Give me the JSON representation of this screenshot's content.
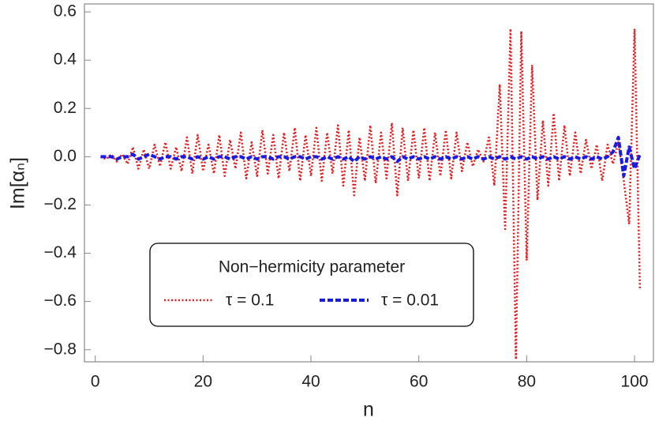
{
  "chart_data": {
    "type": "line",
    "xlabel": "n",
    "ylabel": "Im[αₙ]",
    "legend_title": "Non−hermicity parameter",
    "legend": "bottom-left",
    "x": [
      1,
      2,
      3,
      4,
      5,
      6,
      7,
      8,
      9,
      10,
      11,
      12,
      13,
      14,
      15,
      16,
      17,
      18,
      19,
      20,
      21,
      22,
      23,
      24,
      25,
      26,
      27,
      28,
      29,
      30,
      31,
      32,
      33,
      34,
      35,
      36,
      37,
      38,
      39,
      40,
      41,
      42,
      43,
      44,
      45,
      46,
      47,
      48,
      49,
      50,
      51,
      52,
      53,
      54,
      55,
      56,
      57,
      58,
      59,
      60,
      61,
      62,
      63,
      64,
      65,
      66,
      67,
      68,
      69,
      70,
      71,
      72,
      73,
      74,
      75,
      76,
      77,
      78,
      79,
      80,
      81,
      82,
      83,
      84,
      85,
      86,
      87,
      88,
      89,
      90,
      91,
      92,
      93,
      94,
      95,
      96,
      97,
      98,
      99,
      100,
      101
    ],
    "series": [
      {
        "name": "τ = 0.1",
        "color": "#e8191e",
        "style": "dotted",
        "values": [
          0,
          -0.01,
          0.01,
          -0.02,
          0.01,
          -0.03,
          0.04,
          -0.05,
          0.03,
          -0.05,
          0.05,
          -0.04,
          0.06,
          -0.05,
          0.04,
          -0.06,
          0.08,
          -0.07,
          0.09,
          -0.06,
          0.05,
          -0.07,
          0.09,
          -0.08,
          0.07,
          -0.05,
          0.1,
          -0.09,
          0.06,
          -0.08,
          0.11,
          -0.07,
          0.09,
          -0.09,
          0.1,
          -0.06,
          0.12,
          -0.1,
          0.09,
          -0.08,
          0.12,
          -0.1,
          0.1,
          -0.07,
          0.13,
          -0.12,
          0.11,
          -0.16,
          0.08,
          -0.1,
          0.13,
          -0.11,
          0.1,
          -0.09,
          0.14,
          -0.16,
          0.12,
          -0.1,
          0.11,
          -0.09,
          0.12,
          -0.1,
          0.1,
          -0.08,
          0.11,
          -0.09,
          0.1,
          -0.06,
          0.06,
          -0.04,
          0.03,
          -0.02,
          0.08,
          -0.12,
          0.3,
          -0.3,
          0.53,
          -0.84,
          0.52,
          -0.43,
          0.38,
          -0.18,
          0.15,
          -0.12,
          0.18,
          -0.1,
          0.13,
          -0.08,
          0.1,
          -0.07,
          0.07,
          -0.05,
          0.05,
          -0.1,
          0.05,
          -0.03,
          0.06,
          -0.1,
          -0.28,
          0.53,
          -0.55
        ]
      },
      {
        "name": "τ = 0.01",
        "color": "#1a1ae6",
        "style": "dashed",
        "values": [
          0,
          0,
          0,
          -0.01,
          0,
          0,
          0.01,
          -0.01,
          0,
          0.01,
          0,
          -0.01,
          0,
          0,
          -0.01,
          0,
          0,
          -0.01,
          0,
          -0.01,
          0,
          -0.01,
          0,
          0,
          -0.01,
          0,
          0,
          -0.01,
          0,
          -0.01,
          0,
          0,
          -0.01,
          0,
          0,
          -0.01,
          0,
          0,
          -0.01,
          0,
          0,
          -0.01,
          0,
          -0.01,
          0,
          -0.01,
          0,
          -0.02,
          0,
          -0.01,
          0,
          -0.01,
          0,
          -0.01,
          0,
          -0.02,
          0,
          -0.01,
          0,
          -0.01,
          0,
          -0.01,
          0,
          -0.01,
          0,
          -0.01,
          0,
          -0.01,
          0,
          -0.01,
          0,
          -0.01,
          0,
          -0.01,
          0,
          -0.01,
          0,
          -0.01,
          0,
          -0.01,
          0,
          -0.01,
          0,
          -0.01,
          0,
          -0.01,
          0,
          -0.01,
          0,
          -0.01,
          0,
          -0.01,
          0,
          -0.01,
          0,
          0.02,
          0.08,
          -0.08,
          0.04,
          -0.05,
          0.01
        ]
      }
    ],
    "xlim": [
      -2,
      103.5
    ],
    "ylim": [
      -0.85,
      0.633
    ],
    "xticks": [
      0,
      20,
      40,
      60,
      80,
      100
    ],
    "yticks": [
      {
        "value": -0.8,
        "label": "−0.8"
      },
      {
        "value": -0.6,
        "label": "−0.6"
      },
      {
        "value": -0.4,
        "label": "−0.4"
      },
      {
        "value": -0.2,
        "label": "−0.2"
      },
      {
        "value": 0,
        "label": "0.0"
      },
      0.2,
      0.4,
      0.6
    ]
  }
}
